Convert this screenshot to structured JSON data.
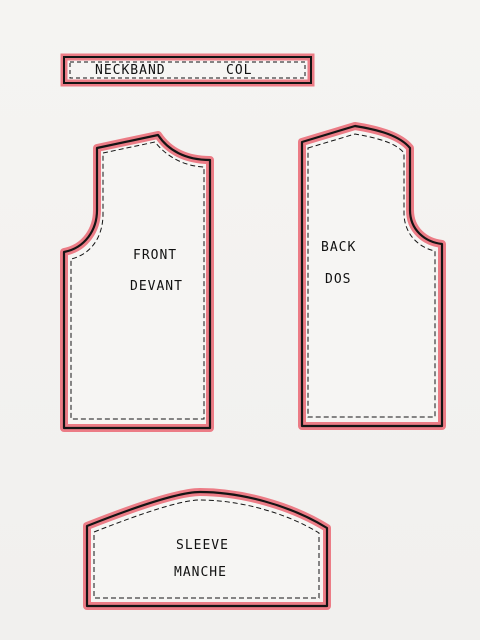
{
  "pieces": {
    "neckband": {
      "label": "NECKBAND",
      "label_fr": "COL"
    },
    "front": {
      "label": "FRONT",
      "label_fr": "DEVANT"
    },
    "back": {
      "label": "BACK",
      "label_fr": "DOS"
    },
    "sleeve": {
      "label": "SLEEVE",
      "label_fr": "MANCHE"
    }
  },
  "colors": {
    "outline": "#141414",
    "seam_allowance": "#ec7c86",
    "paper": "#f3f2f0"
  }
}
